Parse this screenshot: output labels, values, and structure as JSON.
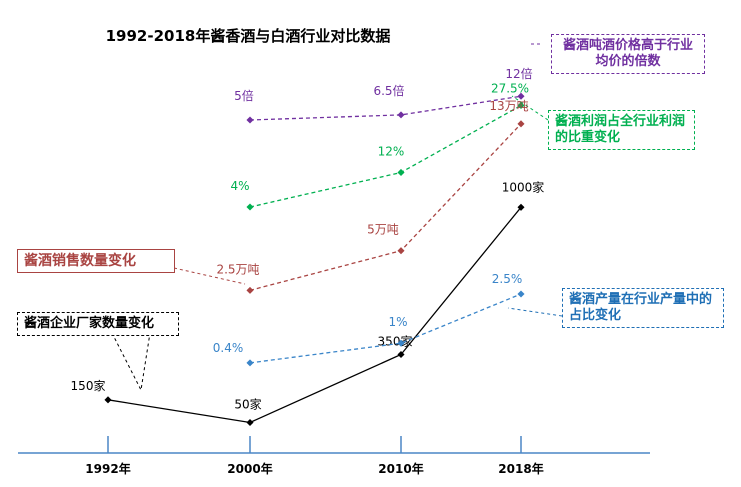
{
  "chart_data": {
    "type": "line",
    "title": "1992-2018年酱香酒与白酒行业对比数据",
    "categories": [
      "1992年",
      "2000年",
      "2010年",
      "2018年"
    ],
    "series": [
      {
        "key": "multiple",
        "name": "酱酒吨酒价格高于行业均价的倍数",
        "color": "#7030a0",
        "x": [
          "2000年",
          "2010年",
          "2018年"
        ],
        "values": [
          5,
          6.5,
          12
        ],
        "labels": [
          "5倍",
          "6.5倍",
          "12倍"
        ]
      },
      {
        "key": "profit",
        "name": "酱酒利润占全行业利润的比重变化",
        "color": "#00b050",
        "x": [
          "2000年",
          "2010年",
          "2018年"
        ],
        "values": [
          4,
          12,
          27.5
        ],
        "labels": [
          "4%",
          "12%",
          "27.5%"
        ]
      },
      {
        "key": "sales",
        "name": "酱酒销售数量变化",
        "color": "#a94442",
        "x": [
          "2000年",
          "2010年",
          "2018年"
        ],
        "values": [
          2.5,
          5,
          13
        ],
        "labels": [
          "2.5万吨",
          "5万吨",
          "13万吨"
        ]
      },
      {
        "key": "companies",
        "name": "酱酒企业厂家数量变化",
        "color": "#000000",
        "x": [
          "1992年",
          "2000年",
          "2010年",
          "2018年"
        ],
        "values": [
          150,
          50,
          350,
          1000
        ],
        "labels": [
          "150家",
          "50家",
          "350家",
          "1000家"
        ]
      },
      {
        "key": "share",
        "name": "酱酒产量在行业产量中的占比变化",
        "color": "#3a85c9",
        "x": [
          "2000年",
          "2010年",
          "2018年"
        ],
        "values": [
          0.4,
          1,
          2.5
        ],
        "labels": [
          "0.4%",
          "1%",
          "2.5%"
        ]
      }
    ]
  }
}
